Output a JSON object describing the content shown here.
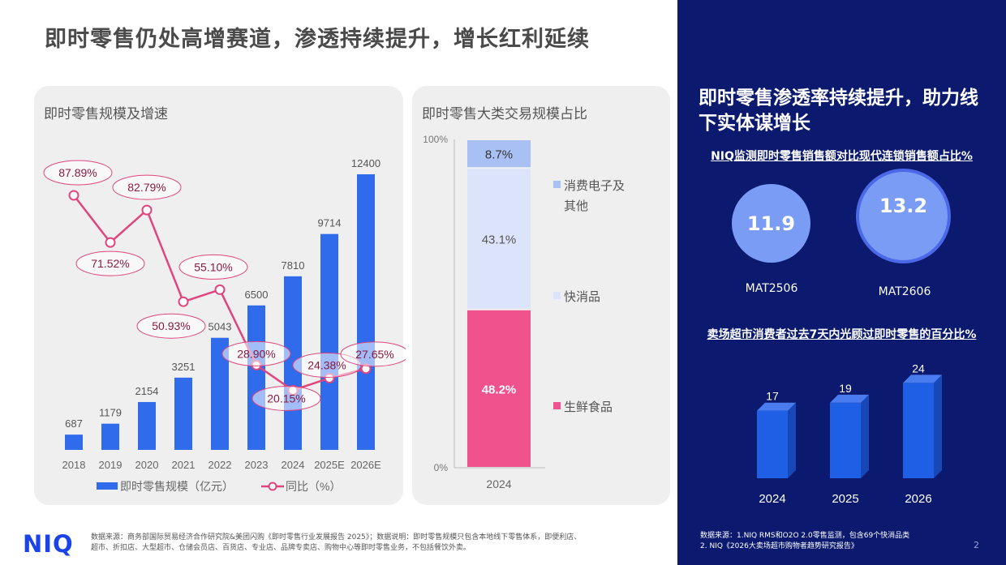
{
  "title": "即时零售仍处高增赛道，渗透持续提升，增长红利延续",
  "left_chart": {
    "title": "即时零售规模及增速",
    "legend": [
      "即时零售规模（亿元）",
      "同比（%）"
    ]
  },
  "mid_chart": {
    "title": "即时零售大类交易规模占比",
    "y_ticks": [
      "100%",
      "0%"
    ],
    "x_label": "2024"
  },
  "right": {
    "title": "即时零售渗透率持续提升，助力线下实体谋增长",
    "subtitle1": "NIQ监测即时零售销售额对比现代连锁销售额占比%",
    "circles": [
      {
        "value": "11.9",
        "label": "MAT2506"
      },
      {
        "value": "13.2",
        "label": "MAT2606"
      }
    ],
    "subtitle2": "卖场超市消费者过去7天内光顾过即时零售的百分比%",
    "source_line1": "数据来源：1.NIQ RMS和O2O 2.0零售监测，包含69个快消品类",
    "source_line2": "2. NIQ《2026大卖场超市购物者趋势研究报告》",
    "page": "2"
  },
  "logo": "NIQ",
  "source_line1": "数据来源：商务部国际贸易经济合作研究院&美团闪购《即时零售行业发展报告 2025》；数据说明：即时零售规模只包含本地线下零售体系，即便利店、",
  "source_line2": "超市、折扣店、大型超市、仓储会员店、百货店、专业店、品牌专卖店、购物中心等即时零售业务，不包括餐饮外卖。",
  "colors": {
    "bar": "#2f6bea",
    "line": "#e0457e",
    "fresh": "#f0528e",
    "fmcg": "#dbe4fb",
    "electronics": "#a9c0f5",
    "navy": "#0b1a6e",
    "bar3d": "#1e5fe6"
  },
  "chart_data": [
    {
      "type": "bar",
      "title": "即时零售规模及增速",
      "categories": [
        "2018",
        "2019",
        "2020",
        "2021",
        "2022",
        "2023",
        "2024",
        "2025E",
        "2026E"
      ],
      "series": [
        {
          "name": "即时零售规模（亿元）",
          "type": "bar",
          "values": [
            687,
            1179,
            2154,
            3251,
            5043,
            6500,
            7810,
            9714,
            12400
          ],
          "labels": [
            "687",
            "1179",
            "2154",
            "3251",
            "5043",
            "6500",
            "7810",
            "9714",
            "12400"
          ]
        },
        {
          "name": "同比（%）",
          "type": "line",
          "values": [
            87.89,
            71.52,
            82.79,
            50.93,
            55.1,
            28.9,
            20.15,
            24.38,
            27.65
          ],
          "labels": [
            "87.89%",
            "71.52%",
            "82.79%",
            "50.93%",
            "55.10%",
            "28.90%",
            "20.15%",
            "24.38%",
            "27.65%"
          ]
        }
      ],
      "ylim": [
        0,
        12400
      ],
      "y2lim": [
        0,
        100
      ],
      "grid": false,
      "legend": "bottom"
    },
    {
      "type": "bar",
      "stacked": true,
      "title": "即时零售大类交易规模占比",
      "categories": [
        "2024"
      ],
      "series": [
        {
          "name": "生鲜食品",
          "values": [
            48.2
          ],
          "label": "48.2%"
        },
        {
          "name": "快消品",
          "values": [
            43.1
          ],
          "label": "43.1%"
        },
        {
          "name": "消费电子及其他",
          "values": [
            8.7
          ],
          "label": "8.7%"
        }
      ],
      "ylim": [
        0,
        100
      ],
      "legend": "right"
    },
    {
      "type": "bar",
      "title": "卖场超市消费者过去7天内光顾过即时零售的百分比%",
      "categories": [
        "2024",
        "2025",
        "2026"
      ],
      "values": [
        17,
        19,
        24
      ],
      "labels": [
        "17",
        "19",
        "24"
      ]
    }
  ]
}
